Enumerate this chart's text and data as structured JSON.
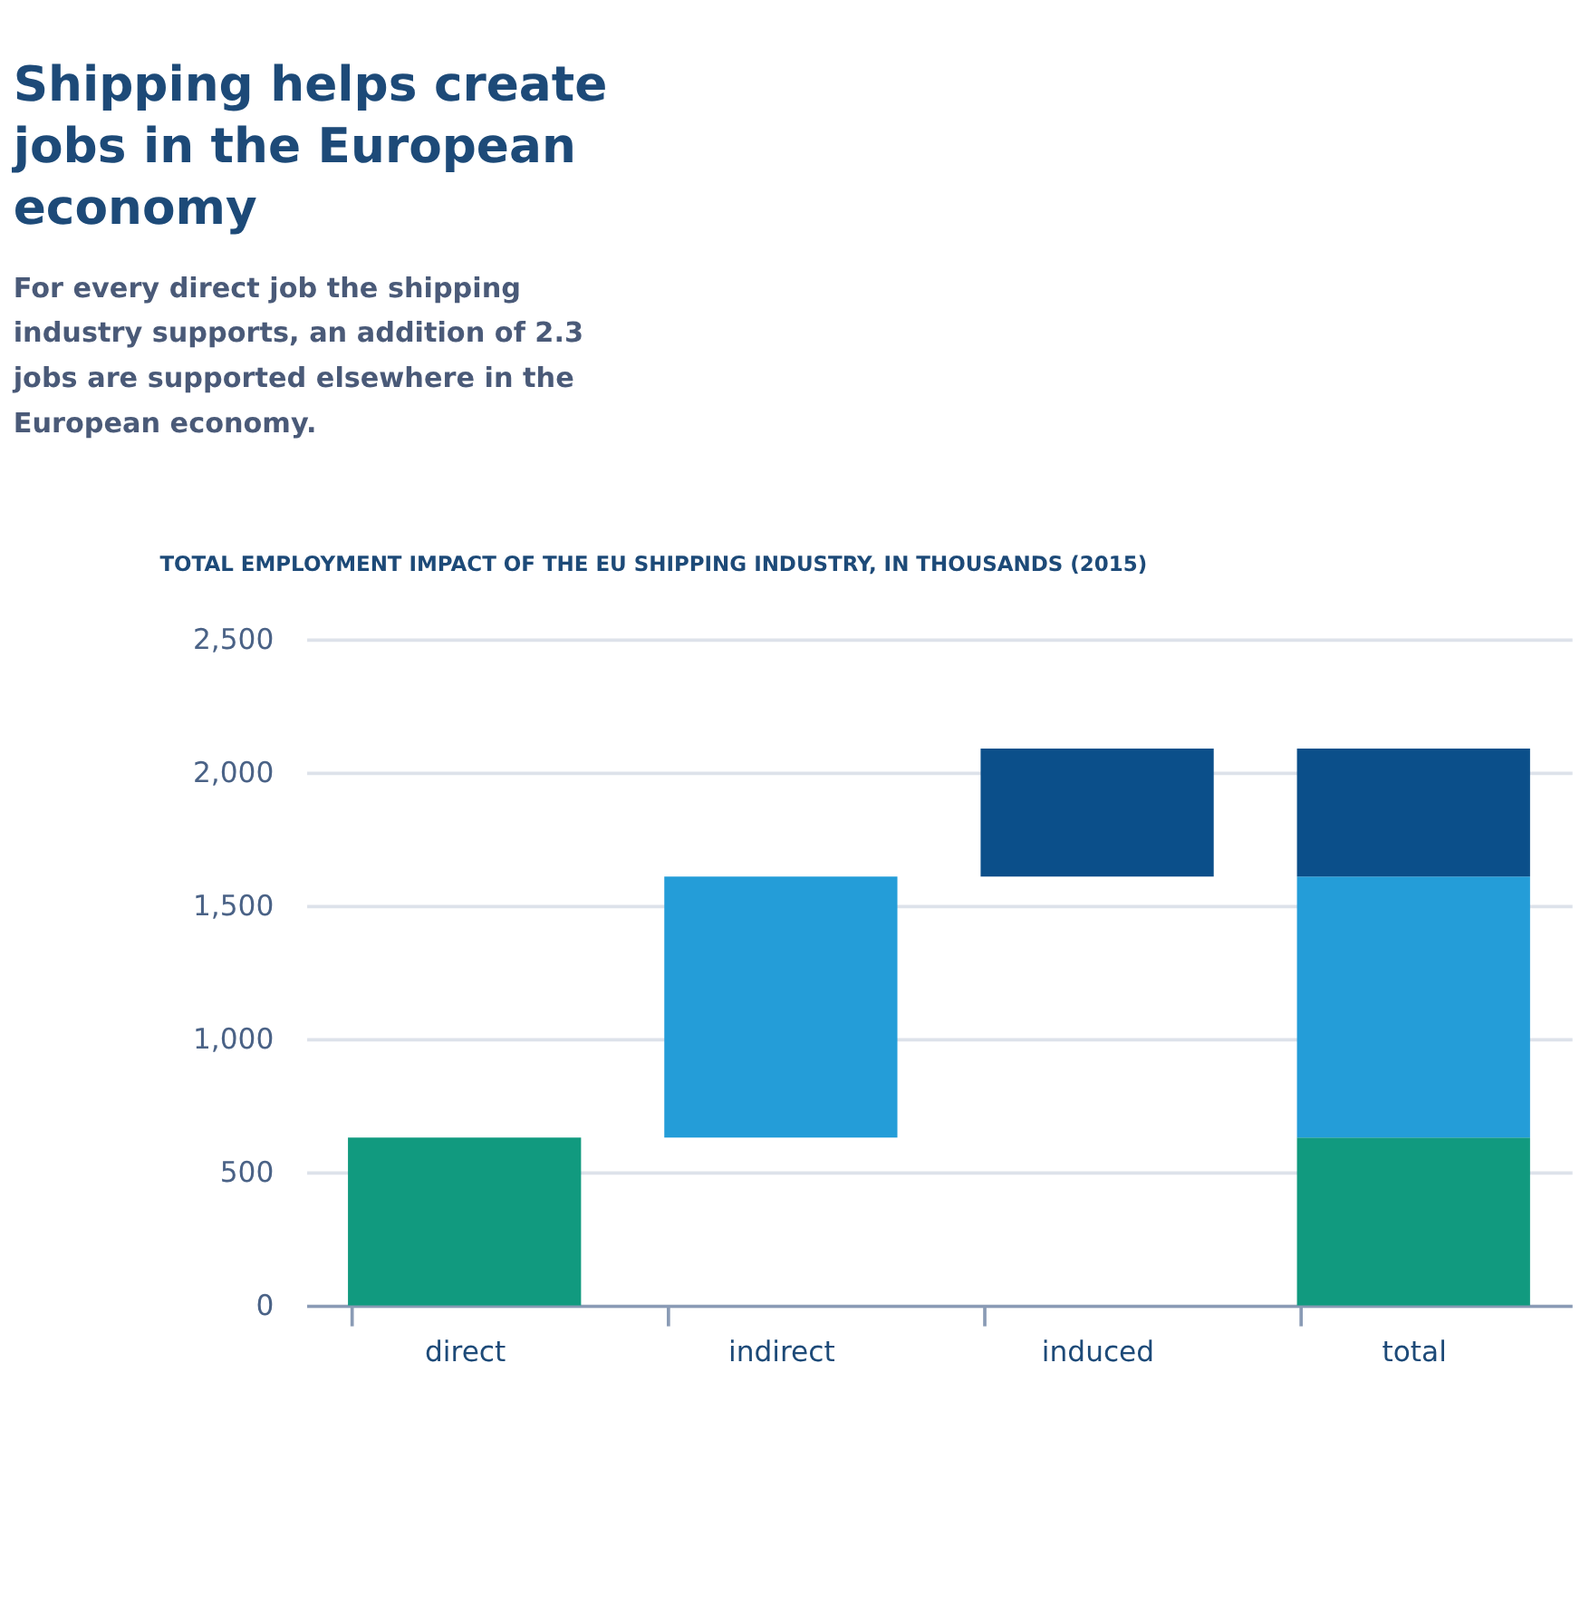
{
  "chart_data": {
    "type": "bar",
    "title": "Shipping helps create jobs in the European economy",
    "subtitle": "For every direct job the shipping industry supports, an addition of 2.3 jobs are supported elsewhere in the European economy.",
    "annotations": [
      "TOTAL EMPLOYMENT IMPACT OF THE EU SHIPPING INDUSTRY, IN THOUSANDS (2015)"
    ],
    "categories": [
      "direct",
      "indirect",
      "induced",
      "total"
    ],
    "series": [
      {
        "color": "#119a7f",
        "values": [
          630,
          null,
          null,
          630
        ],
        "base": [
          0,
          null,
          null,
          0
        ]
      },
      {
        "color": "#249dd8",
        "values": [
          null,
          980,
          null,
          980
        ],
        "base": [
          null,
          630,
          null,
          630
        ]
      },
      {
        "color": "#0b4f8a",
        "values": [
          null,
          null,
          480,
          480
        ],
        "base": [
          null,
          null,
          1610,
          1610
        ]
      }
    ],
    "ylim": [
      0,
      2500
    ],
    "yticks": [
      {
        "value": 0,
        "label": "0"
      },
      {
        "value": 500,
        "label": "500"
      },
      {
        "value": 1000,
        "label": "1,000"
      },
      {
        "value": 1500,
        "label": "1,500"
      },
      {
        "value": 2000,
        "label": "2,000"
      },
      {
        "value": 2500,
        "label": "2,500"
      }
    ],
    "grid": "y",
    "legend": false
  }
}
